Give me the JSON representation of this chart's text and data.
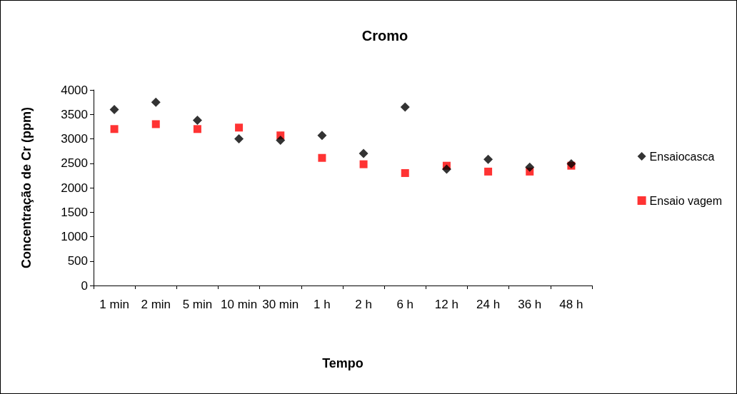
{
  "chart_data": {
    "type": "scatter",
    "title": "Cromo",
    "xlabel": "Tempo",
    "ylabel": "Concentração de Cr (ppm)",
    "categories": [
      "1 min",
      "2 min",
      "5 min",
      "10 min",
      "30 min",
      "1 h",
      "2 h",
      "6 h",
      "12 h",
      "24 h",
      "36 h",
      "48 h"
    ],
    "series": [
      {
        "name": "Ensaiocasca",
        "color": "#000000",
        "marker": "diamond",
        "values": [
          3600,
          3750,
          3380,
          3000,
          2970,
          3070,
          2700,
          3650,
          2380,
          2580,
          2420,
          2490
        ]
      },
      {
        "name": "Ensaio vagem",
        "color": "#ff0000",
        "marker": "square",
        "values": [
          3200,
          3300,
          3200,
          3230,
          3070,
          2610,
          2480,
          2300,
          2450,
          2330,
          2330,
          2450
        ]
      }
    ],
    "ylim": [
      0,
      4000
    ],
    "yticks": [
      0,
      500,
      1000,
      1500,
      2000,
      2500,
      3000,
      3500,
      4000
    ],
    "grid": false,
    "legend": "right"
  }
}
